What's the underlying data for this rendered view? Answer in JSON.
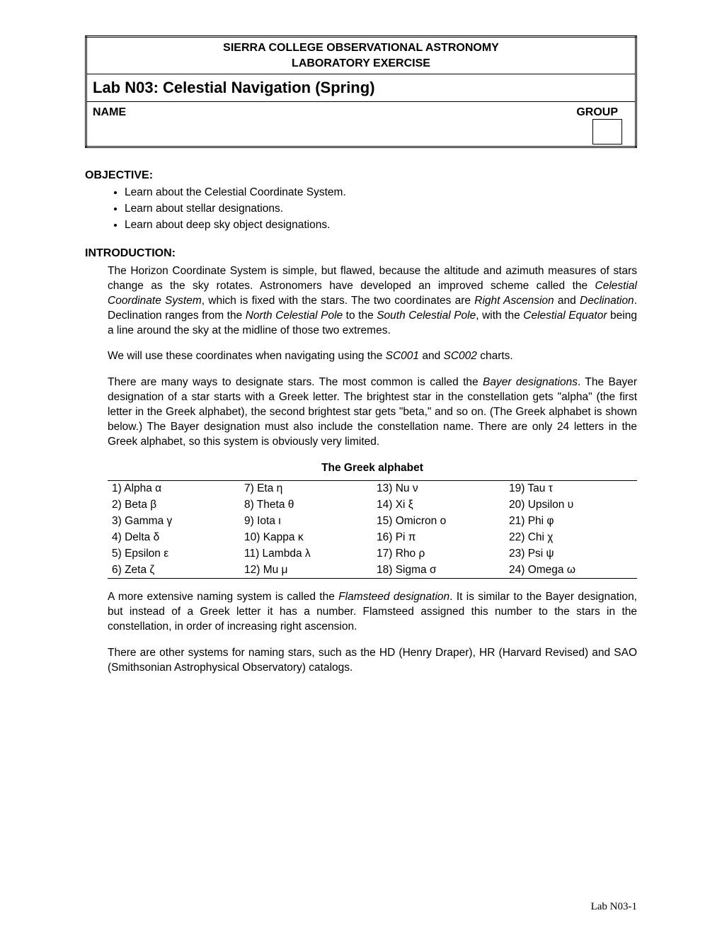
{
  "header": {
    "line1": "SIERRA COLLEGE OBSERVATIONAL ASTRONOMY",
    "line2": "LABORATORY EXERCISE",
    "title": "Lab N03: Celestial Navigation (Spring)",
    "name_label": "NAME",
    "group_label": "GROUP"
  },
  "objective": {
    "heading": "OBJECTIVE:",
    "items": [
      "Learn about the Celestial Coordinate System.",
      "Learn about stellar designations.",
      "Learn about deep sky object designations."
    ]
  },
  "introduction": {
    "heading": "INTRODUCTION:",
    "para1_a": "The Horizon Coordinate System is simple, but flawed, because the altitude and azimuth measures of stars change as the sky rotates. Astronomers have developed an improved scheme called the ",
    "para1_i1": "Celestial Coordinate System",
    "para1_b": ", which is fixed with the stars. The two coordinates are ",
    "para1_i2": "Right Ascension",
    "para1_c": " and ",
    "para1_i3": "Declination",
    "para1_d": ". Declination ranges from the ",
    "para1_i4": "North Celestial Pole",
    "para1_e": " to the ",
    "para1_i5": "South Celestial Pole",
    "para1_f": ", with the ",
    "para1_i6": "Celestial Equator",
    "para1_g": " being a line around the sky at the midline of those two extremes.",
    "para2_a": "We will use these coordinates when navigating using the ",
    "para2_i1": "SC001",
    "para2_b": " and ",
    "para2_i2": "SC002",
    "para2_c": " charts.",
    "para3_a": "There are many ways to designate stars. The most common is called the ",
    "para3_i1": "Bayer designations",
    "para3_b": ". The Bayer designation of a star starts with a Greek letter. The brightest star in the constellation gets \"alpha\" (the first letter in the Greek alphabet), the second brightest star gets \"beta,\" and so on. (The Greek alphabet is shown below.) The Bayer designation must also include the constellation name. There are only 24 letters in the Greek alphabet, so this system is obviously very limited."
  },
  "greek": {
    "title": "The Greek alphabet",
    "rows": [
      [
        "1) Alpha α",
        "7) Eta η",
        "13) Nu ν",
        "19) Tau τ"
      ],
      [
        "2) Beta β",
        "8) Theta θ",
        "14) Xi ξ",
        "20) Upsilon υ"
      ],
      [
        "3) Gamma γ",
        "9) Iota ι",
        "15) Omicron ο",
        "21) Phi φ"
      ],
      [
        "4) Delta δ",
        "10) Kappa κ",
        "16) Pi π",
        "22) Chi χ"
      ],
      [
        "5) Epsilon ε",
        "11) Lambda λ",
        "17) Rho ρ",
        "23) Psi ψ"
      ],
      [
        "6) Zeta ζ",
        "12) Mu μ",
        "18) Sigma σ",
        "24) Omega ω"
      ]
    ]
  },
  "after": {
    "para4_a": "A more extensive naming system is called the ",
    "para4_i1": "Flamsteed designation",
    "para4_b": ". It is similar to the Bayer designation, but instead of a Greek letter it has a number. Flamsteed assigned this number to the stars in the constellation, in order of increasing right ascension.",
    "para5": "There are other systems for naming stars, such as the HD (Henry Draper), HR (Harvard Revised) and SAO (Smithsonian Astrophysical Observatory) catalogs."
  },
  "footer": "Lab N03-1"
}
